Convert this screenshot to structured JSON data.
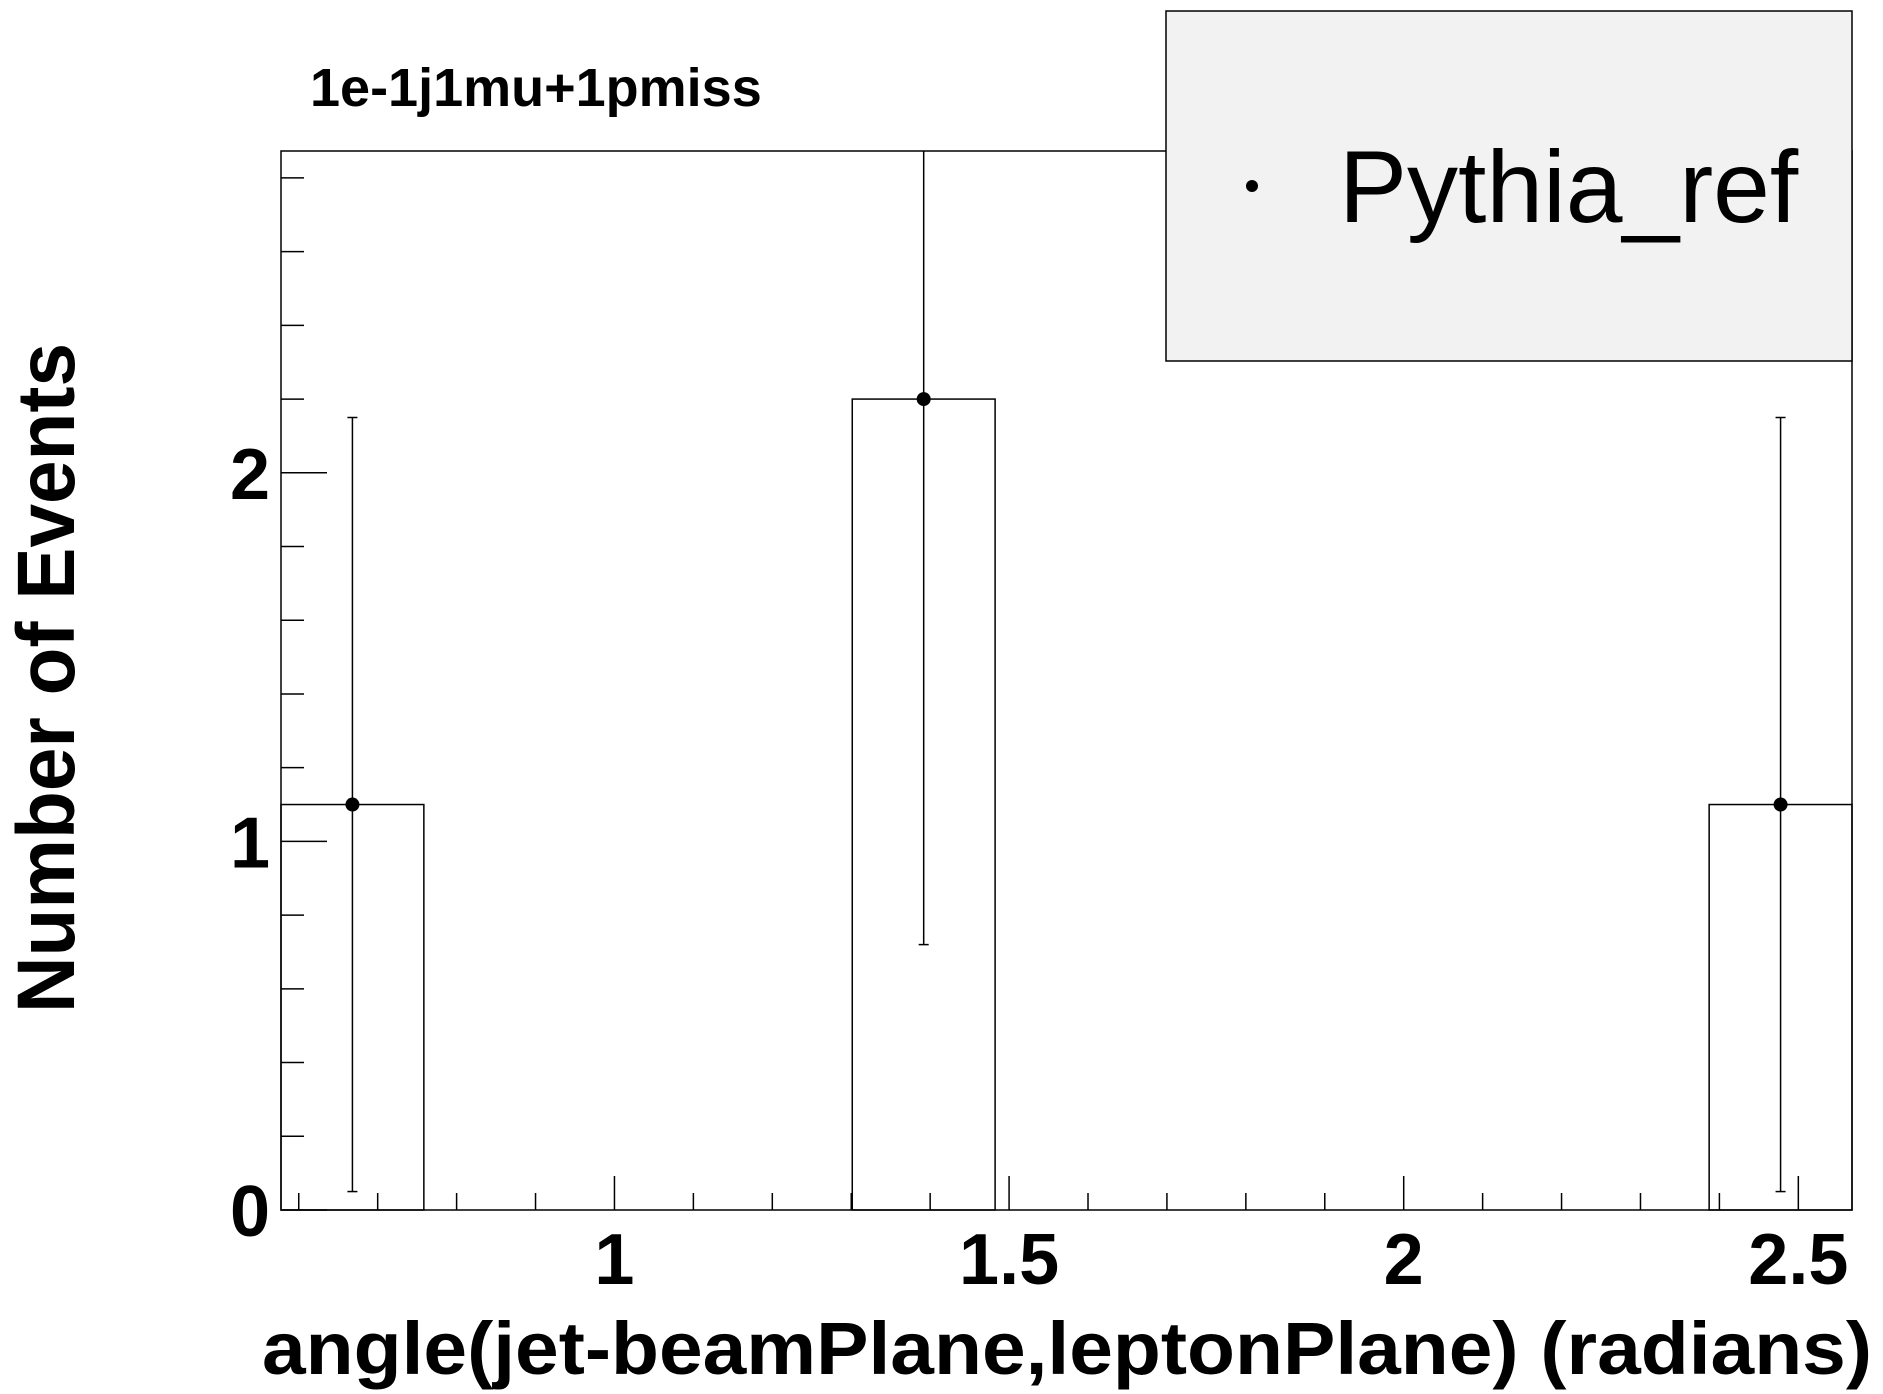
{
  "chart_data": {
    "type": "histogram",
    "title": "1e-1j1mu+1pmiss",
    "x_label": "angle(jet-beamPlane,leptonPlane) (radians)",
    "y_label": "Number of Events",
    "bins": [
      0.5775,
      0.7585,
      0.9394,
      1.1204,
      1.3013,
      1.4823,
      1.6632,
      1.8442,
      2.0251,
      2.2061,
      2.387,
      2.568
    ],
    "series": [
      {
        "name": "Pythia_ref",
        "color": "#000000",
        "values": [
          1.1,
          0,
          0,
          0,
          2.2,
          0,
          0,
          0,
          0,
          0,
          1.1
        ],
        "errors": [
          1.05,
          0,
          0,
          0,
          1.48,
          0,
          0,
          0,
          0,
          0,
          1.05
        ]
      }
    ],
    "xlim": [
      0.5775,
      2.568
    ],
    "ylim": [
      0,
      2.873
    ],
    "xticks": [
      1,
      1.5,
      2,
      2.5
    ],
    "yticks": [
      0,
      1,
      2
    ],
    "xminorticks": [
      0.6,
      0.7,
      0.8,
      0.9,
      1.1,
      1.2,
      1.3,
      1.4,
      1.6,
      1.7,
      1.8,
      1.9,
      2.1,
      2.2,
      2.3,
      2.4
    ],
    "yminorticks": [
      0.2,
      0.4,
      0.6,
      0.8,
      1.2,
      1.4,
      1.6,
      1.8,
      2.2,
      2.4,
      2.6,
      2.8
    ],
    "legend": "top-right"
  }
}
